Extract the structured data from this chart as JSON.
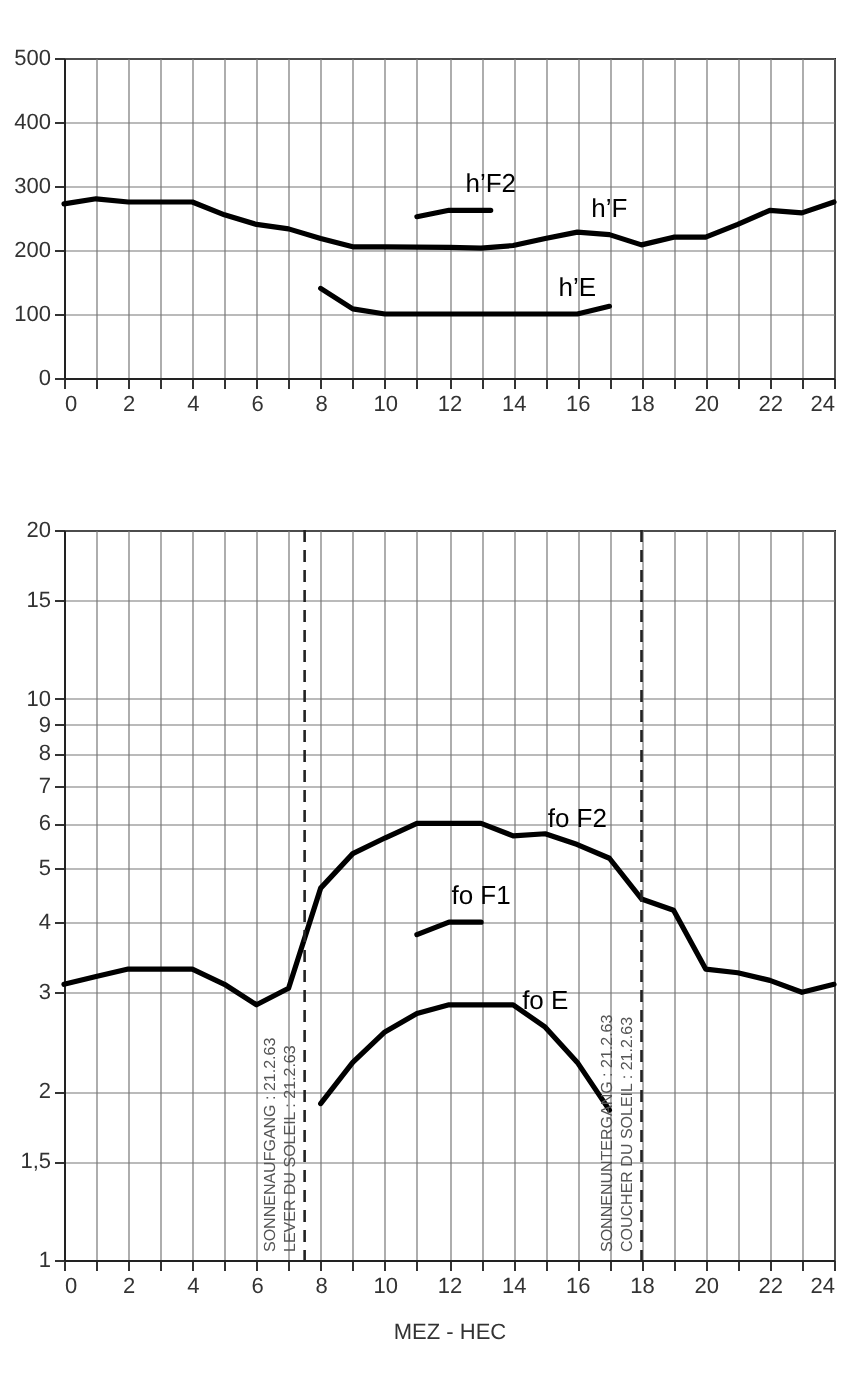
{
  "chart_data": [
    {
      "type": "line",
      "xlim": [
        0,
        24
      ],
      "ylim": [
        0,
        500
      ],
      "xticks": [
        0,
        {
          "value": 1,
          "label": null
        },
        2,
        {
          "value": 3,
          "label": null
        },
        4,
        {
          "value": 5,
          "label": null
        },
        6,
        {
          "value": 7,
          "label": null
        },
        8,
        {
          "value": 9,
          "label": null
        },
        10,
        {
          "value": 11,
          "label": null
        },
        12,
        {
          "value": 13,
          "label": null
        },
        14,
        {
          "value": 15,
          "label": null
        },
        16,
        {
          "value": 17,
          "label": null
        },
        18,
        {
          "value": 19,
          "label": null
        },
        20,
        {
          "value": 21,
          "label": null
        },
        22,
        {
          "value": 23,
          "label": null
        },
        24
      ],
      "yticks": [
        0,
        100,
        200,
        300,
        400,
        500
      ],
      "grid": true,
      "legend": false,
      "line_style": "solid",
      "series": [
        {
          "name": "h’F2",
          "color": "#000000",
          "x": [
            11,
            12,
            13.3
          ],
          "values": [
            252,
            262,
            262
          ]
        },
        {
          "name": "h’F",
          "color": "#000000",
          "x": [
            0,
            1,
            2,
            3,
            4,
            5,
            6,
            7,
            8,
            9,
            10,
            12,
            13,
            14,
            15,
            16,
            17,
            18,
            19,
            20,
            21,
            22,
            23,
            24
          ],
          "values": [
            272,
            280,
            275,
            275,
            275,
            255,
            240,
            233,
            218,
            205,
            205,
            204,
            203,
            207,
            218,
            228,
            224,
            208,
            220,
            220,
            240,
            262,
            258,
            275
          ]
        },
        {
          "name": "h’E",
          "color": "#000000",
          "x": [
            8,
            9,
            10,
            16,
            17
          ],
          "values": [
            140,
            108,
            100,
            100,
            112
          ]
        }
      ]
    },
    {
      "type": "line",
      "xlabel": "MEZ - HEC",
      "xlim": [
        0,
        24
      ],
      "ylim": [
        1,
        20
      ],
      "log": "y",
      "xticks": [
        0,
        {
          "value": 1,
          "label": null
        },
        2,
        {
          "value": 3,
          "label": null
        },
        4,
        {
          "value": 5,
          "label": null
        },
        6,
        {
          "value": 7,
          "label": null
        },
        8,
        {
          "value": 9,
          "label": null
        },
        10,
        {
          "value": 11,
          "label": null
        },
        12,
        {
          "value": 13,
          "label": null
        },
        14,
        {
          "value": 15,
          "label": null
        },
        16,
        {
          "value": 17,
          "label": null
        },
        18,
        {
          "value": 19,
          "label": null
        },
        20,
        {
          "value": 21,
          "label": null
        },
        22,
        {
          "value": 23,
          "label": null
        },
        24
      ],
      "yticks": [
        1,
        {
          "value": 1.5,
          "label": "1,5"
        },
        2,
        3,
        4,
        5,
        6,
        7,
        8,
        9,
        10,
        15,
        20
      ],
      "grid": true,
      "legend": false,
      "line_style": "solid",
      "ref_lines": [
        {
          "axis": "x",
          "value": 7.5,
          "label": "SONNENAUFGANG : 21.2.63\nLEVER DU SOLEIL : 21.2.63",
          "line_style": "dashed"
        },
        {
          "axis": "x",
          "value": 18,
          "label": "SONNENUNTERGANG : 21.2.63\nCOUCHER DU SOLEIL : 21.2.63",
          "line_style": "dashed"
        }
      ],
      "series": [
        {
          "name": "fo F2",
          "color": "#000000",
          "x": [
            0,
            1,
            2,
            3,
            4,
            5,
            6,
            7,
            8,
            9,
            10,
            11,
            12,
            13,
            14,
            15,
            16,
            17,
            18,
            19,
            20,
            21,
            22,
            23,
            24
          ],
          "values": [
            3.1,
            3.2,
            3.3,
            3.3,
            3.3,
            3.1,
            2.85,
            3.05,
            4.6,
            5.3,
            5.65,
            6.0,
            6.0,
            6.0,
            5.7,
            5.75,
            5.5,
            5.2,
            4.4,
            4.2,
            3.3,
            3.25,
            3.15,
            3.0,
            3.1
          ]
        },
        {
          "name": "fo F1",
          "color": "#000000",
          "x": [
            11,
            12,
            13
          ],
          "values": [
            3.8,
            4.0,
            4.0
          ]
        },
        {
          "name": "fo E",
          "color": "#000000",
          "x": [
            8,
            9,
            10,
            11,
            12,
            14,
            15,
            16,
            17
          ],
          "values": [
            1.9,
            2.25,
            2.55,
            2.75,
            2.85,
            2.85,
            2.6,
            2.25,
            1.85
          ]
        }
      ]
    }
  ]
}
